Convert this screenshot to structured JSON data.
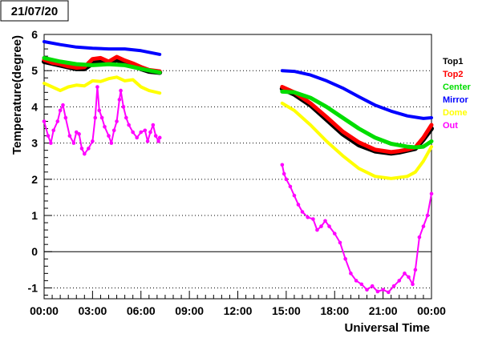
{
  "date_label": "21/07/20",
  "chart_data": {
    "type": "line",
    "xlabel": "Universal Time",
    "ylabel": "Temperature(degree)",
    "xlim": [
      "00:00",
      "24:00"
    ],
    "ylim": [
      -1.3,
      6
    ],
    "x_ticks": [
      "00:00",
      "03:00",
      "06:00",
      "09:00",
      "12:00",
      "15:00",
      "18:00",
      "21:00",
      "00:00"
    ],
    "y_ticks": [
      "-1",
      "0",
      "1",
      "2",
      "3",
      "4",
      "5",
      "6"
    ],
    "grid": "horizontal dotted",
    "legend_position": "right",
    "series": [
      {
        "name": "Top1",
        "color": "#000000",
        "segments": [
          [
            [
              "00:00",
              5.25
            ],
            [
              "00:30",
              5.2
            ],
            [
              "01:00",
              5.15
            ],
            [
              "01:30",
              5.1
            ],
            [
              "02:00",
              5.05
            ],
            [
              "02:30",
              5.05
            ],
            [
              "03:00",
              5.2
            ],
            [
              "03:30",
              5.25
            ],
            [
              "04:00",
              5.2
            ],
            [
              "04:30",
              5.3
            ],
            [
              "05:00",
              5.2
            ],
            [
              "05:30",
              5.15
            ],
            [
              "06:00",
              5.05
            ],
            [
              "06:30",
              4.98
            ],
            [
              "07:10",
              4.95
            ]
          ],
          [
            [
              "14:45",
              4.5
            ],
            [
              "15:30",
              4.35
            ],
            [
              "16:30",
              4.05
            ],
            [
              "17:30",
              3.65
            ],
            [
              "18:30",
              3.25
            ],
            [
              "19:30",
              2.95
            ],
            [
              "20:30",
              2.78
            ],
            [
              "21:30",
              2.72
            ],
            [
              "22:00",
              2.75
            ],
            [
              "22:30",
              2.8
            ],
            [
              "23:00",
              2.85
            ],
            [
              "23:30",
              3.1
            ],
            [
              "24:00",
              3.4
            ]
          ]
        ]
      },
      {
        "name": "Top2",
        "color": "#ff0000",
        "segments": [
          [
            [
              "00:00",
              5.3
            ],
            [
              "00:30",
              5.22
            ],
            [
              "01:00",
              5.18
            ],
            [
              "01:30",
              5.12
            ],
            [
              "02:00",
              5.08
            ],
            [
              "02:30",
              5.1
            ],
            [
              "03:00",
              5.32
            ],
            [
              "03:30",
              5.35
            ],
            [
              "04:00",
              5.25
            ],
            [
              "04:30",
              5.38
            ],
            [
              "05:00",
              5.28
            ],
            [
              "05:30",
              5.2
            ],
            [
              "06:00",
              5.1
            ],
            [
              "06:30",
              5.02
            ],
            [
              "07:10",
              4.98
            ]
          ],
          [
            [
              "14:45",
              4.55
            ],
            [
              "15:30",
              4.4
            ],
            [
              "16:30",
              4.1
            ],
            [
              "17:30",
              3.72
            ],
            [
              "18:30",
              3.32
            ],
            [
              "19:30",
              3.02
            ],
            [
              "20:30",
              2.82
            ],
            [
              "21:30",
              2.75
            ],
            [
              "22:00",
              2.78
            ],
            [
              "22:30",
              2.82
            ],
            [
              "23:00",
              2.88
            ],
            [
              "23:30",
              3.15
            ],
            [
              "24:00",
              3.5
            ]
          ]
        ]
      },
      {
        "name": "Center",
        "color": "#00dd00",
        "segments": [
          [
            [
              "00:00",
              5.35
            ],
            [
              "01:00",
              5.25
            ],
            [
              "02:00",
              5.18
            ],
            [
              "03:00",
              5.15
            ],
            [
              "04:00",
              5.18
            ],
            [
              "05:00",
              5.15
            ],
            [
              "06:00",
              5.05
            ],
            [
              "07:10",
              4.95
            ]
          ],
          [
            [
              "14:45",
              4.42
            ],
            [
              "15:30",
              4.4
            ],
            [
              "16:30",
              4.25
            ],
            [
              "17:30",
              4.0
            ],
            [
              "18:30",
              3.7
            ],
            [
              "19:30",
              3.4
            ],
            [
              "20:30",
              3.15
            ],
            [
              "21:30",
              2.98
            ],
            [
              "22:30",
              2.9
            ],
            [
              "23:00",
              2.88
            ],
            [
              "23:30",
              2.9
            ],
            [
              "24:00",
              3.05
            ]
          ]
        ]
      },
      {
        "name": "Mirror",
        "color": "#0000ff",
        "segments": [
          [
            [
              "00:00",
              5.8
            ],
            [
              "01:00",
              5.72
            ],
            [
              "02:00",
              5.65
            ],
            [
              "03:00",
              5.62
            ],
            [
              "04:00",
              5.6
            ],
            [
              "05:00",
              5.6
            ],
            [
              "06:00",
              5.55
            ],
            [
              "07:10",
              5.45
            ]
          ],
          [
            [
              "14:45",
              5.0
            ],
            [
              "15:30",
              4.98
            ],
            [
              "16:30",
              4.88
            ],
            [
              "17:30",
              4.72
            ],
            [
              "18:30",
              4.52
            ],
            [
              "19:30",
              4.28
            ],
            [
              "20:30",
              4.05
            ],
            [
              "21:30",
              3.88
            ],
            [
              "22:30",
              3.75
            ],
            [
              "23:30",
              3.68
            ],
            [
              "24:00",
              3.7
            ]
          ]
        ]
      },
      {
        "name": "Dome",
        "color": "#ffff00",
        "segments": [
          [
            [
              "00:00",
              4.65
            ],
            [
              "00:30",
              4.55
            ],
            [
              "01:00",
              4.45
            ],
            [
              "01:30",
              4.55
            ],
            [
              "02:00",
              4.6
            ],
            [
              "02:30",
              4.58
            ],
            [
              "03:00",
              4.72
            ],
            [
              "03:30",
              4.7
            ],
            [
              "04:00",
              4.78
            ],
            [
              "04:30",
              4.82
            ],
            [
              "05:00",
              4.72
            ],
            [
              "05:30",
              4.75
            ],
            [
              "06:00",
              4.55
            ],
            [
              "06:30",
              4.45
            ],
            [
              "07:10",
              4.38
            ]
          ],
          [
            [
              "14:45",
              4.1
            ],
            [
              "15:30",
              3.9
            ],
            [
              "16:30",
              3.5
            ],
            [
              "17:30",
              3.05
            ],
            [
              "18:30",
              2.65
            ],
            [
              "19:30",
              2.3
            ],
            [
              "20:30",
              2.08
            ],
            [
              "21:30",
              2.02
            ],
            [
              "22:30",
              2.08
            ],
            [
              "23:00",
              2.2
            ],
            [
              "23:30",
              2.5
            ],
            [
              "24:00",
              2.9
            ]
          ]
        ]
      },
      {
        "name": "Out",
        "color": "#ff00ff",
        "segments": [
          [
            [
              "00:00",
              3.6
            ],
            [
              "00:15",
              3.2
            ],
            [
              "00:25",
              3.0
            ],
            [
              "00:35",
              3.35
            ],
            [
              "00:50",
              3.6
            ],
            [
              "01:00",
              3.9
            ],
            [
              "01:10",
              4.05
            ],
            [
              "01:20",
              3.7
            ],
            [
              "01:35",
              3.2
            ],
            [
              "01:50",
              3.0
            ],
            [
              "02:00",
              3.3
            ],
            [
              "02:10",
              3.25
            ],
            [
              "02:20",
              2.85
            ],
            [
              "02:30",
              2.7
            ],
            [
              "02:45",
              2.85
            ],
            [
              "03:00",
              3.05
            ],
            [
              "03:10",
              3.7
            ],
            [
              "03:18",
              4.55
            ],
            [
              "03:25",
              3.9
            ],
            [
              "03:35",
              3.7
            ],
            [
              "03:45",
              3.45
            ],
            [
              "04:00",
              3.2
            ],
            [
              "04:10",
              3.0
            ],
            [
              "04:20",
              3.35
            ],
            [
              "04:30",
              3.6
            ],
            [
              "04:40",
              4.2
            ],
            [
              "04:45",
              4.45
            ],
            [
              "04:55",
              4.0
            ],
            [
              "05:05",
              3.7
            ],
            [
              "05:15",
              3.5
            ],
            [
              "05:30",
              3.3
            ],
            [
              "05:45",
              3.15
            ],
            [
              "06:00",
              3.3
            ],
            [
              "06:15",
              3.35
            ],
            [
              "06:25",
              3.05
            ],
            [
              "06:35",
              3.3
            ],
            [
              "06:45",
              3.5
            ],
            [
              "06:55",
              3.2
            ],
            [
              "07:05",
              3.05
            ],
            [
              "07:10",
              3.15
            ]
          ],
          [
            [
              "14:45",
              2.4
            ],
            [
              "14:52",
              2.15
            ],
            [
              "15:00",
              2.0
            ],
            [
              "15:15",
              1.8
            ],
            [
              "15:30",
              1.55
            ],
            [
              "15:45",
              1.3
            ],
            [
              "16:00",
              1.1
            ],
            [
              "16:20",
              0.95
            ],
            [
              "16:40",
              0.9
            ],
            [
              "16:55",
              0.6
            ],
            [
              "17:10",
              0.7
            ],
            [
              "17:25",
              0.85
            ],
            [
              "17:40",
              0.7
            ],
            [
              "18:00",
              0.5
            ],
            [
              "18:20",
              0.25
            ],
            [
              "18:40",
              -0.2
            ],
            [
              "19:00",
              -0.6
            ],
            [
              "19:20",
              -0.8
            ],
            [
              "19:40",
              -0.9
            ],
            [
              "20:00",
              -1.05
            ],
            [
              "20:20",
              -0.95
            ],
            [
              "20:40",
              -1.1
            ],
            [
              "21:00",
              -1.05
            ],
            [
              "21:20",
              -1.12
            ],
            [
              "21:40",
              -0.95
            ],
            [
              "22:00",
              -0.8
            ],
            [
              "22:20",
              -0.6
            ],
            [
              "22:35",
              -0.7
            ],
            [
              "22:50",
              -0.9
            ],
            [
              "23:00",
              -0.5
            ],
            [
              "23:15",
              0.4
            ],
            [
              "23:30",
              0.7
            ],
            [
              "23:45",
              1.0
            ],
            [
              "24:00",
              1.6
            ]
          ]
        ]
      }
    ]
  }
}
